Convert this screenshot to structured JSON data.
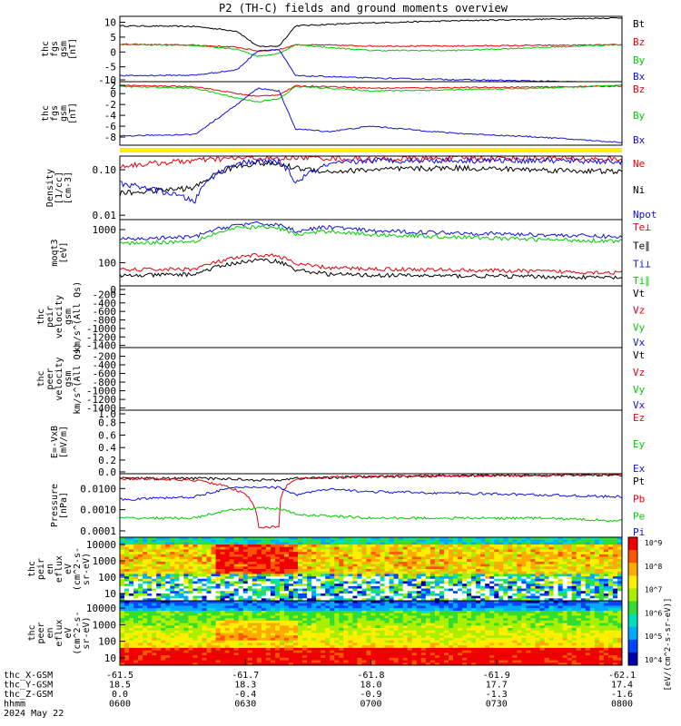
{
  "title": "P2 (TH-C) fields and ground moments overview",
  "colors": {
    "black": "#000000",
    "red": "#e8000b",
    "green": "#00cc00",
    "blue": "#1010e0",
    "yellow": "#ffee00"
  },
  "x_axis": {
    "ticks": [
      "0600",
      "0630",
      "0700",
      "0730",
      "0800"
    ],
    "rows": [
      {
        "label": "thc_X-GSM",
        "values": [
          "-61.5",
          "-61.7",
          "-61.8",
          "-61.9",
          "-62.1"
        ]
      },
      {
        "label": "thc_Y-GSM",
        "values": [
          "18.5",
          "18.3",
          "18.0",
          "17.7",
          "17.4"
        ]
      },
      {
        "label": "thc_Z-GSM",
        "values": [
          "0.0",
          "-0.4",
          "-0.9",
          "-1.3",
          "-1.6"
        ]
      },
      {
        "label": "hhmm",
        "values": [
          "0600",
          "0630",
          "0700",
          "0730",
          "0800"
        ]
      }
    ],
    "date": "2024 May 22"
  },
  "colorbar": {
    "label": "[eV/(cm^2-s-sr-eV)]",
    "ticks": [
      "10^4",
      "10^5",
      "10^6",
      "10^7",
      "10^8",
      "10^9"
    ]
  },
  "chart_data": [
    {
      "type": "line",
      "ylabel": [
        "thc",
        "fgs",
        "gsm",
        "[nT]"
      ],
      "ylim": [
        -10,
        12
      ],
      "yticks": [
        "10",
        "5",
        "0",
        "-5",
        "-10"
      ],
      "series": [
        {
          "name": "Bt",
          "color": "black"
        },
        {
          "name": "Bz",
          "color": "red"
        },
        {
          "name": "By",
          "color": "green"
        },
        {
          "name": "Bx",
          "color": "blue"
        }
      ],
      "x": [
        0,
        18,
        28,
        33,
        38,
        42,
        50,
        60,
        80,
        100,
        120
      ],
      "values": {
        "Bt": [
          8.8,
          8.6,
          7.0,
          1.8,
          2.0,
          8.8,
          9.3,
          9.8,
          10.5,
          11.0,
          11.5
        ],
        "Bz": [
          2.6,
          2.3,
          1.6,
          0.3,
          0.8,
          2.4,
          2.3,
          2.0,
          2.0,
          2.2,
          2.4
        ],
        "By": [
          2.5,
          2.2,
          1.0,
          -1.5,
          -0.5,
          2.5,
          1.5,
          0.5,
          0.5,
          1.5,
          2.5
        ],
        "Bx": [
          -8.0,
          -7.8,
          -6.0,
          0.5,
          0.8,
          -8.0,
          -8.3,
          -8.8,
          -9.3,
          -9.8,
          -10.5
        ]
      }
    },
    {
      "type": "line",
      "ylabel": [
        "thc",
        "fgs",
        "gsm",
        "[nT]"
      ],
      "ylim": [
        -9.5,
        2.2
      ],
      "yticks": [
        "2",
        "0",
        "-2",
        "-4",
        "-6",
        "-8"
      ],
      "series": [
        {
          "name": "Bz",
          "color": "red"
        },
        {
          "name": "By",
          "color": "green"
        },
        {
          "name": "Bx",
          "color": "blue"
        }
      ],
      "x": [
        0,
        18,
        28,
        33,
        38,
        42,
        50,
        60,
        80,
        100,
        120
      ],
      "values": {
        "Bz": [
          1.5,
          1.3,
          0.0,
          -0.5,
          -0.2,
          1.4,
          1.3,
          1.0,
          1.1,
          1.2,
          1.4
        ],
        "By": [
          1.3,
          1.0,
          -0.8,
          -1.5,
          -1.0,
          1.3,
          1.0,
          0.5,
          0.7,
          1.0,
          1.5
        ],
        "Bx": [
          -7.8,
          -7.5,
          -2.0,
          1.0,
          0.5,
          -6.5,
          -7.0,
          -6.0,
          -7.3,
          -8.0,
          -9.0
        ]
      }
    },
    {
      "type": "line",
      "ylabel": [
        "Density",
        "[1/cc]",
        "[cm-3]"
      ],
      "ylim": [
        0.008,
        0.2
      ],
      "scale": "log",
      "yticks": [
        "0.10",
        "0.01"
      ],
      "series": [
        {
          "name": "Ne",
          "color": "red"
        },
        {
          "name": "Ni",
          "color": "black"
        },
        {
          "name": "Npot",
          "color": "blue"
        }
      ],
      "x": [
        0,
        18,
        28,
        33,
        38,
        42,
        50,
        60,
        80,
        100,
        120
      ],
      "values": {
        "Ne": [
          0.12,
          0.16,
          0.18,
          0.18,
          0.17,
          0.19,
          0.18,
          0.17,
          0.18,
          0.18,
          0.17
        ],
        "Ni": [
          0.03,
          0.04,
          0.12,
          0.14,
          0.13,
          0.11,
          0.09,
          0.1,
          0.11,
          0.1,
          0.09
        ],
        "Npot": [
          0.05,
          0.02,
          0.14,
          0.15,
          0.15,
          0.05,
          0.13,
          0.16,
          0.16,
          0.16,
          0.15
        ]
      }
    },
    {
      "type": "line",
      "ylabel": [
        "moqt3",
        "[eV]"
      ],
      "ylim": [
        20,
        2000
      ],
      "scale": "log",
      "yticks": [
        "1000",
        "100"
      ],
      "series": [
        {
          "name": "Te⊥",
          "color": "red"
        },
        {
          "name": "Te∥",
          "color": "black"
        },
        {
          "name": "Ti⊥",
          "color": "blue"
        },
        {
          "name": "Ti∥",
          "color": "green"
        }
      ],
      "x": [
        0,
        18,
        28,
        33,
        38,
        42,
        50,
        60,
        80,
        100,
        120
      ],
      "values": {
        "Te⊥": [
          60,
          65,
          140,
          170,
          160,
          90,
          70,
          65,
          60,
          55,
          50
        ],
        "Te∥": [
          40,
          45,
          100,
          120,
          110,
          60,
          45,
          42,
          40,
          38,
          35
        ],
        "Ti⊥": [
          500,
          600,
          1400,
          1500,
          1400,
          900,
          1200,
          900,
          800,
          700,
          600
        ],
        "Ti∥": [
          380,
          450,
          1100,
          1200,
          1100,
          700,
          900,
          700,
          600,
          500,
          450
        ]
      }
    },
    {
      "type": "line",
      "ylabel": [
        "thc",
        "peir",
        "velocity",
        "gsm",
        "km/s^(All Qs)"
      ],
      "ylim": [
        -1450,
        0
      ],
      "yticks": [
        "0",
        "-200",
        "-400",
        "-600",
        "-800",
        "-1000",
        "-1200",
        "-1400"
      ],
      "series": [
        {
          "name": "Vt",
          "color": "black"
        },
        {
          "name": "Vz",
          "color": "red"
        },
        {
          "name": "Vy",
          "color": "green"
        },
        {
          "name": "Vx",
          "color": "blue"
        }
      ]
    },
    {
      "type": "line",
      "ylabel": [
        "thc",
        "peer",
        "velocity",
        "gsm",
        "km/s^(All Qs)"
      ],
      "ylim": [
        -1450,
        0
      ],
      "yticks": [
        "-200",
        "-400",
        "-600",
        "-800",
        "-1000",
        "-1200",
        "-1400"
      ],
      "series": [
        {
          "name": "Vt",
          "color": "black"
        },
        {
          "name": "Vz",
          "color": "red"
        },
        {
          "name": "Vy",
          "color": "green"
        },
        {
          "name": "Vx",
          "color": "blue"
        }
      ]
    },
    {
      "type": "line",
      "ylabel": [
        "E=-VxB",
        "[mV/m]"
      ],
      "ylim": [
        -0.02,
        1.0
      ],
      "yticks": [
        "1.0",
        "0.8",
        "0.6",
        "0.4",
        "0.2",
        "0.0"
      ],
      "series": [
        {
          "name": "Ez",
          "color": "red"
        },
        {
          "name": "Ey",
          "color": "green"
        },
        {
          "name": "Ex",
          "color": "blue"
        }
      ]
    },
    {
      "type": "line",
      "ylabel": [
        "Pressure",
        "[nPa]"
      ],
      "ylim": [
        5e-05,
        0.05
      ],
      "scale": "log",
      "yticks": [
        "0.0100",
        "0.0010",
        "0.0001"
      ],
      "series": [
        {
          "name": "Pt",
          "color": "black"
        },
        {
          "name": "Pb",
          "color": "red"
        },
        {
          "name": "Pe",
          "color": "green"
        },
        {
          "name": "Pi",
          "color": "blue"
        }
      ],
      "x": [
        0,
        18,
        28,
        33,
        38,
        42,
        50,
        60,
        80,
        100,
        120
      ],
      "values": {
        "Pt": [
          0.03,
          0.03,
          0.028,
          0.025,
          0.025,
          0.03,
          0.033,
          0.036,
          0.04,
          0.042,
          0.044
        ],
        "Pb": [
          0.03,
          0.025,
          0.008,
          0.00015,
          0.00015,
          0.028,
          0.034,
          0.037,
          0.04,
          0.043,
          0.045
        ],
        "Pe": [
          0.0004,
          0.0004,
          0.001,
          0.0012,
          0.0011,
          0.0006,
          0.0005,
          0.0004,
          0.0004,
          0.0004,
          0.0003
        ],
        "Pi": [
          0.003,
          0.004,
          0.011,
          0.012,
          0.011,
          0.005,
          0.009,
          0.007,
          0.006,
          0.005,
          0.004
        ]
      }
    },
    {
      "type": "heatmap",
      "ylabel": [
        "thc",
        "peir",
        "en",
        "eflux",
        "eV",
        "(cm^2-s-",
        "sr-eV)"
      ],
      "yticks": [
        "10000",
        "1000",
        "100",
        "10"
      ]
    },
    {
      "type": "heatmap",
      "ylabel": [
        "thc",
        "peer",
        "en",
        "eflux",
        "eV",
        "(cm^2-s-",
        "sr-eV)"
      ],
      "yticks": [
        "10000",
        "1000",
        "100",
        "10"
      ]
    }
  ]
}
